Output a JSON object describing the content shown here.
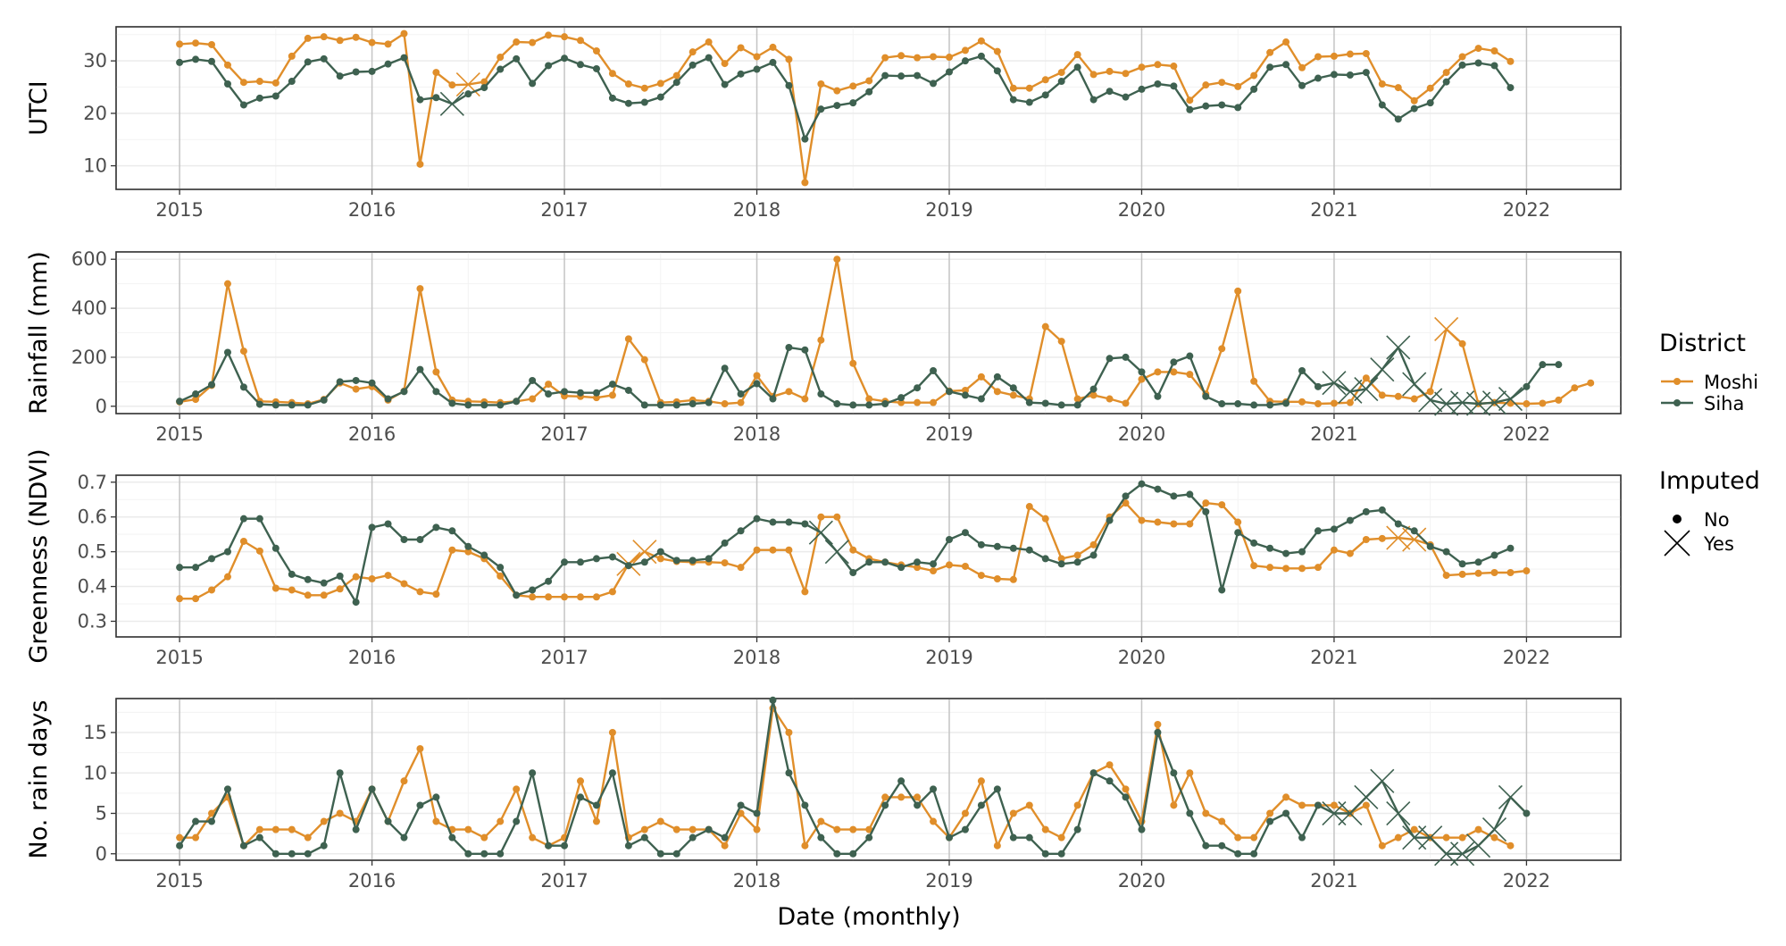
{
  "chart_data": [
    {
      "type": "line",
      "ylabel": "UTCI",
      "xlabel": "",
      "ylim": [
        5.5,
        36.5
      ],
      "yticks": [
        10,
        20,
        30
      ],
      "series": [
        {
          "name": "Moshi",
          "color": "#E08E2A",
          "values": [
            33.2,
            33.4,
            33.1,
            29.2,
            25.9,
            26.1,
            25.8,
            30.9,
            34.3,
            34.6,
            33.9,
            34.5,
            33.5,
            33.2,
            35.2,
            10.3,
            27.8,
            25.4,
            25.5,
            26.0,
            30.7,
            33.6,
            33.5,
            34.9,
            34.6,
            33.9,
            31.9,
            27.6,
            25.6,
            24.8,
            25.7,
            27.2,
            31.7,
            33.6,
            29.5,
            32.5,
            30.8,
            32.6,
            30.3,
            6.8,
            25.6,
            24.3,
            25.2,
            26.2,
            30.6,
            31.0,
            30.6,
            30.8,
            30.7,
            32.0,
            33.8,
            31.8,
            24.8,
            24.8,
            26.4,
            27.8,
            31.2,
            27.4,
            28.0,
            27.6,
            28.8,
            29.3,
            29.0,
            22.5,
            25.4,
            25.9,
            25.1,
            27.2,
            31.6,
            33.6,
            28.7,
            30.8,
            30.9,
            31.3,
            31.4,
            25.6,
            24.9,
            22.4,
            24.8,
            27.8,
            30.8,
            32.4,
            31.9,
            29.9
          ]
        },
        {
          "name": "Siha",
          "color": "#3E6150",
          "values": [
            29.7,
            30.3,
            29.9,
            25.6,
            21.6,
            22.9,
            23.3,
            26.1,
            29.8,
            30.4,
            27.1,
            27.9,
            28.0,
            29.4,
            30.6,
            22.6,
            23.0,
            21.8,
            23.7,
            24.9,
            28.4,
            30.4,
            25.7,
            29.1,
            30.5,
            29.3,
            28.5,
            22.9,
            21.9,
            22.1,
            23.1,
            25.9,
            29.2,
            30.6,
            25.5,
            27.5,
            28.4,
            29.7,
            25.3,
            15.1,
            20.8,
            21.5,
            22.0,
            24.1,
            27.2,
            27.1,
            27.2,
            25.7,
            27.9,
            30.0,
            30.9,
            28.1,
            22.6,
            22.1,
            23.5,
            26.1,
            28.8,
            22.6,
            24.2,
            23.1,
            24.6,
            25.6,
            25.2,
            20.7,
            21.4,
            21.6,
            21.1,
            24.6,
            28.8,
            29.3,
            25.3,
            26.7,
            27.4,
            27.3,
            27.8,
            21.6,
            18.9,
            20.9,
            22.0,
            26.0,
            29.2,
            29.6,
            29.1,
            24.9
          ]
        }
      ],
      "imputed": [
        {
          "series": "Moshi",
          "months": [
            18
          ]
        },
        {
          "series": "Siha",
          "months": [
            17
          ]
        }
      ]
    },
    {
      "type": "line",
      "ylabel": "Rainfall (mm)",
      "xlabel": "",
      "ylim": [
        -30,
        630
      ],
      "yticks": [
        0,
        200,
        400,
        600
      ],
      "series": [
        {
          "name": "Moshi",
          "color": "#E08E2A",
          "values": [
            18,
            28,
            85,
            500,
            225,
            20,
            18,
            15,
            10,
            28,
            95,
            70,
            80,
            25,
            62,
            480,
            140,
            25,
            20,
            18,
            15,
            20,
            30,
            90,
            42,
            40,
            35,
            45,
            275,
            190,
            15,
            18,
            25,
            20,
            10,
            15,
            125,
            40,
            60,
            30,
            270,
            600,
            175,
            30,
            20,
            15,
            15,
            15,
            62,
            65,
            120,
            60,
            45,
            30,
            325,
            265,
            30,
            45,
            30,
            12,
            110,
            140,
            140,
            130,
            50,
            235,
            470,
            102,
            20,
            18,
            18,
            10,
            12,
            15,
            115,
            45,
            40,
            30,
            60,
            315,
            255,
            10,
            15,
            12,
            10,
            12,
            25,
            75,
            95
          ]
        },
        {
          "name": "Siha",
          "color": "#3E6150",
          "values": [
            20,
            50,
            88,
            220,
            78,
            8,
            5,
            5,
            5,
            25,
            100,
            105,
            95,
            30,
            60,
            150,
            60,
            12,
            5,
            5,
            5,
            20,
            105,
            50,
            60,
            55,
            55,
            90,
            65,
            5,
            5,
            5,
            10,
            15,
            155,
            50,
            92,
            30,
            240,
            230,
            50,
            10,
            5,
            5,
            10,
            35,
            75,
            145,
            60,
            45,
            30,
            120,
            75,
            15,
            12,
            5,
            5,
            70,
            195,
            200,
            140,
            40,
            180,
            205,
            40,
            10,
            10,
            5,
            5,
            12,
            145,
            80,
            95,
            60,
            70,
            150,
            240,
            90,
            25,
            10,
            15,
            10,
            15,
            30,
            80,
            170,
            170
          ]
        }
      ],
      "imputed": [
        {
          "series": "Siha",
          "months": [
            72,
            73,
            74,
            75,
            76,
            77,
            78,
            79,
            80,
            81,
            82,
            83
          ]
        },
        {
          "series": "Moshi",
          "months": [
            79
          ]
        }
      ]
    },
    {
      "type": "line",
      "ylabel": "Greenness (NDVI)",
      "xlabel": "",
      "ylim": [
        0.255,
        0.72
      ],
      "yticks": [
        0.3,
        0.4,
        0.5,
        0.6,
        0.7
      ],
      "series": [
        {
          "name": "Moshi",
          "color": "#E08E2A",
          "values": [
            0.365,
            0.365,
            0.39,
            0.428,
            0.53,
            0.502,
            0.395,
            0.39,
            0.375,
            0.375,
            0.393,
            0.428,
            0.422,
            0.432,
            0.408,
            0.385,
            0.378,
            0.505,
            0.5,
            0.48,
            0.43,
            0.375,
            0.37,
            0.37,
            0.37,
            0.37,
            0.37,
            0.385,
            0.465,
            0.5,
            0.48,
            0.472,
            0.47,
            0.47,
            0.468,
            0.455,
            0.505,
            0.505,
            0.505,
            0.385,
            0.6,
            0.6,
            0.505,
            0.48,
            0.47,
            0.462,
            0.455,
            0.445,
            0.462,
            0.458,
            0.432,
            0.422,
            0.42,
            0.63,
            0.595,
            0.48,
            0.49,
            0.52,
            0.6,
            0.64,
            0.59,
            0.585,
            0.58,
            0.58,
            0.64,
            0.635,
            0.585,
            0.46,
            0.455,
            0.452,
            0.452,
            0.455,
            0.505,
            0.495,
            0.535,
            0.538,
            0.54,
            0.535,
            0.52,
            0.432,
            0.435,
            0.438,
            0.44,
            0.44,
            0.445
          ]
        },
        {
          "name": "Siha",
          "color": "#3E6150",
          "values": [
            0.455,
            0.455,
            0.48,
            0.5,
            0.595,
            0.595,
            0.51,
            0.435,
            0.42,
            0.41,
            0.43,
            0.355,
            0.57,
            0.58,
            0.535,
            0.535,
            0.57,
            0.56,
            0.515,
            0.49,
            0.455,
            0.375,
            0.39,
            0.415,
            0.47,
            0.47,
            0.48,
            0.485,
            0.46,
            0.47,
            0.5,
            0.475,
            0.475,
            0.48,
            0.525,
            0.56,
            0.595,
            0.585,
            0.585,
            0.58,
            0.555,
            0.5,
            0.44,
            0.47,
            0.47,
            0.455,
            0.47,
            0.465,
            0.535,
            0.555,
            0.52,
            0.515,
            0.51,
            0.505,
            0.48,
            0.465,
            0.47,
            0.49,
            0.59,
            0.66,
            0.695,
            0.68,
            0.66,
            0.665,
            0.615,
            0.39,
            0.555,
            0.525,
            0.51,
            0.495,
            0.5,
            0.56,
            0.565,
            0.59,
            0.615,
            0.62,
            0.58,
            0.56,
            0.515,
            0.5,
            0.465,
            0.47,
            0.49,
            0.51
          ]
        }
      ],
      "imputed": [
        {
          "series": "Moshi",
          "months": [
            28,
            29
          ]
        },
        {
          "series": "Siha",
          "months": [
            40,
            41
          ]
        },
        {
          "series": "Moshi",
          "months": [
            76,
            77
          ]
        }
      ]
    },
    {
      "type": "line",
      "ylabel": "No. rain days",
      "xlabel": "Date (monthly)",
      "ylim": [
        -0.8,
        19.2
      ],
      "yticks": [
        0,
        5,
        10,
        15
      ],
      "series": [
        {
          "name": "Moshi",
          "color": "#E08E2A",
          "values": [
            2,
            2,
            5,
            7,
            1,
            3,
            3,
            3,
            2,
            4,
            5,
            4,
            8,
            4,
            9,
            13,
            4,
            3,
            3,
            2,
            4,
            8,
            2,
            1,
            2,
            9,
            4,
            15,
            2,
            3,
            4,
            3,
            3,
            3,
            1,
            5,
            3,
            18,
            15,
            1,
            4,
            3,
            3,
            3,
            7,
            7,
            7,
            4,
            2,
            5,
            9,
            1,
            5,
            6,
            3,
            2,
            6,
            10,
            11,
            8,
            4,
            16,
            6,
            10,
            5,
            4,
            2,
            2,
            5,
            7,
            6,
            6,
            6,
            5,
            6,
            1,
            2,
            3,
            2,
            2,
            2,
            3,
            2,
            1
          ]
        },
        {
          "name": "Siha",
          "color": "#3E6150",
          "values": [
            1,
            4,
            4,
            8,
            1,
            2,
            0,
            0,
            0,
            1,
            10,
            3,
            8,
            4,
            2,
            6,
            7,
            2,
            0,
            0,
            0,
            4,
            10,
            1,
            1,
            7,
            6,
            10,
            1,
            2,
            0,
            0,
            2,
            3,
            2,
            6,
            5,
            19,
            10,
            6,
            2,
            0,
            0,
            2,
            6,
            9,
            6,
            8,
            2,
            3,
            6,
            8,
            2,
            2,
            0,
            0,
            3,
            10,
            9,
            7,
            3,
            15,
            10,
            5,
            1,
            1,
            0,
            0,
            4,
            5,
            2,
            6,
            5,
            5,
            7,
            9,
            5,
            2,
            2,
            0,
            0,
            1,
            3,
            7,
            5
          ]
        }
      ],
      "imputed": [
        {
          "series": "Siha",
          "months": [
            72,
            73,
            74,
            75,
            76,
            77,
            78,
            79,
            80,
            81,
            82,
            83
          ]
        }
      ]
    }
  ],
  "x_axis": {
    "start_year": 2015,
    "tick_labels": [
      "2015",
      "2016",
      "2017",
      "2018",
      "2019",
      "2020",
      "2021",
      "2022"
    ]
  },
  "legend": {
    "placement": "right",
    "district_title": "District",
    "district_items": [
      {
        "label": "Moshi",
        "color": "#E08E2A"
      },
      {
        "label": "Siha",
        "color": "#3E6150"
      }
    ],
    "imputed_title": "Imputed",
    "imputed_items": [
      {
        "label": "No",
        "shape": "dot"
      },
      {
        "label": "Yes",
        "shape": "cross"
      }
    ]
  }
}
